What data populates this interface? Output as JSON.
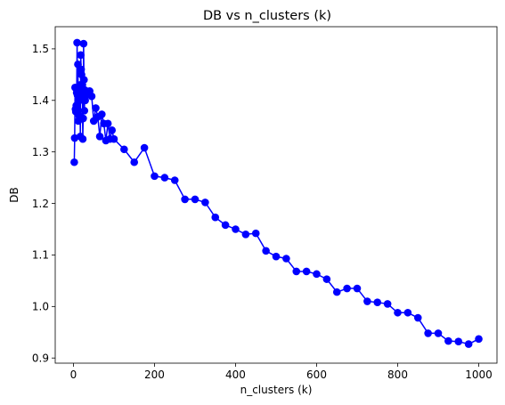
{
  "chart_data": {
    "type": "line",
    "title": "DB vs n_clusters (k)",
    "xlabel": "n_clusters (k)",
    "ylabel": "DB",
    "xlim": [
      -45,
      1045
    ],
    "ylim": [
      0.89,
      1.543
    ],
    "xticks": [
      0,
      200,
      400,
      600,
      800,
      1000
    ],
    "yticks": [
      0.9,
      1.0,
      1.1,
      1.2,
      1.3,
      1.4,
      1.5
    ],
    "ytick_labels": [
      "0.9",
      "1.0",
      "1.1",
      "1.2",
      "1.3",
      "1.4",
      "1.5"
    ],
    "grid": false,
    "legend": false,
    "color": "#0000ff",
    "marker": "circle",
    "series": [
      {
        "x": [
          2,
          3,
          4,
          5,
          6,
          7,
          8,
          9,
          10,
          11,
          12,
          13,
          14,
          15,
          16,
          17,
          18,
          19,
          20,
          21,
          22,
          23,
          24,
          25,
          26,
          27,
          28,
          29,
          30,
          35,
          40,
          45,
          50,
          55,
          60,
          65,
          70,
          75,
          80,
          85,
          90,
          95,
          100,
          125,
          150,
          175,
          200,
          225,
          250,
          275,
          300,
          325,
          350,
          375,
          400,
          425,
          450,
          475,
          500,
          525,
          550,
          575,
          600,
          625,
          650,
          675,
          700,
          725,
          750,
          775,
          800,
          825,
          850,
          875,
          900,
          925,
          950,
          975,
          1000
        ],
        "values": [
          1.28,
          1.327,
          1.425,
          1.383,
          1.378,
          1.39,
          1.415,
          1.512,
          1.41,
          1.47,
          1.36,
          1.42,
          1.37,
          1.4,
          1.43,
          1.33,
          1.488,
          1.46,
          1.45,
          1.41,
          1.43,
          1.325,
          1.365,
          1.51,
          1.44,
          1.38,
          1.42,
          1.4,
          1.41,
          1.413,
          1.418,
          1.408,
          1.36,
          1.385,
          1.368,
          1.33,
          1.373,
          1.355,
          1.322,
          1.355,
          1.325,
          1.342,
          1.325,
          1.305,
          1.28,
          1.308,
          1.253,
          1.25,
          1.245,
          1.208,
          1.208,
          1.202,
          1.173,
          1.158,
          1.15,
          1.14,
          1.142,
          1.108,
          1.097,
          1.093,
          1.068,
          1.068,
          1.063,
          1.053,
          1.028,
          1.035,
          1.035,
          1.01,
          1.008,
          1.005,
          0.988,
          0.988,
          0.978,
          0.948,
          0.948,
          0.933,
          0.932,
          0.927,
          0.937
        ]
      }
    ]
  }
}
